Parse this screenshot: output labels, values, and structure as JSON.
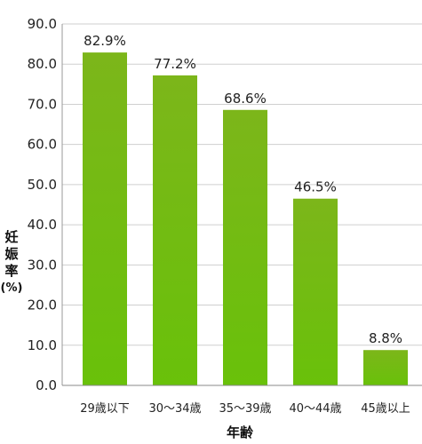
{
  "chart_data": {
    "type": "bar",
    "categories": [
      "29歳以下",
      "30～34歳",
      "35～39歳",
      "40～44歳",
      "45歳以上"
    ],
    "values": [
      82.9,
      77.2,
      68.6,
      46.5,
      8.8
    ],
    "value_labels": [
      "82.9%",
      "77.2%",
      "68.6%",
      "46.5%",
      "8.8%"
    ],
    "title": "",
    "xlabel": "年齢",
    "ylabel_chars": [
      "妊",
      "娠",
      "率"
    ],
    "ylabel_unit": "(%)",
    "ylim": [
      0,
      90
    ],
    "yticks": [
      "0.0",
      "10.0",
      "20.0",
      "30.0",
      "40.0",
      "50.0",
      "60.0",
      "70.0",
      "80.0",
      "90.0"
    ],
    "grid": true,
    "bar_color_top": "#7cb61a",
    "bar_color_bottom": "#69c10a",
    "grid_color": "#cfcfcf"
  }
}
